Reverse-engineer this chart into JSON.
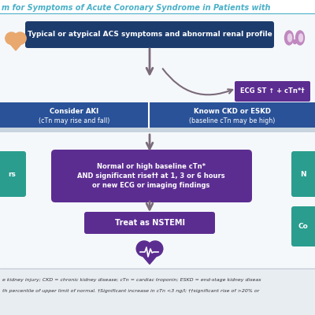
{
  "title": "m for Symptoms of Acute Coronary Syndrome in Patients with",
  "title_color": "#4ab0c8",
  "bg_color": "#f5f8fa",
  "white": "#ffffff",
  "dark_blue": "#1d3c6e",
  "mid_blue": "#2a5298",
  "teal": "#2a9d8f",
  "purple": "#5c2d91",
  "arrow_color": "#7a6a7a",
  "top_banner_color": "#1d3c6e",
  "mid_banner_color": "#2a5298",
  "ecg_box_color": "#5c2d91",
  "normal_box_color": "#5c2d91",
  "nstemi_box_color": "#5c2d91",
  "teal_box_color": "#2a9d8f",
  "heart_color": "#e8a86e",
  "kidney_color": "#c088c0",
  "footnote_bg": "#e8edf2",
  "sep_line_color": "#4ab0c8",
  "title_sep_color": "#4ab0c8",
  "footnote_text_1": "e kidney injury; CKD = chronic kidney disease; cTn = cardiac troponin; ESKD = end-stage kidney diseas",
  "footnote_text_2": "th percentile of upper limit of normal. †Significant increase in cTn <3 ng/l; ††significant rise of >20% or",
  "top_banner_text": "Typical or atypical ACS symptoms and abnormal renal profile",
  "ecg_box_text": "ECG ST ↑ + cTn*†",
  "consider_aki_line1": "Consider AKI",
  "consider_aki_line2": "(cTn may rise and fall)",
  "known_ckd_line1": "Known CKD or ESKD",
  "known_ckd_line2": "(baseline cTn may be high)",
  "normal_box_line1": "Normal or high baseline cTn*",
  "normal_box_line2": "AND significant rise†† at 1, 3 or 6 hours",
  "normal_box_line3": "or new ECG or imaging findings",
  "nstemi_text": "Treat as NSTEMI",
  "teal_left_text": "rs",
  "teal_right_text": "N",
  "teal_bottom_text": "Co"
}
